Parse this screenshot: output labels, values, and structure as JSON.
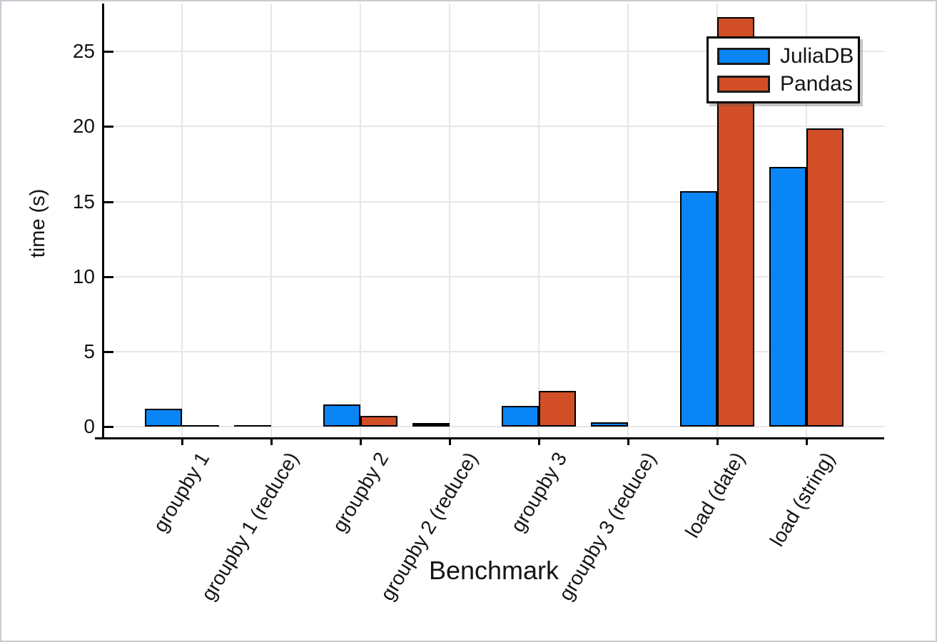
{
  "chart_data": {
    "type": "bar",
    "title": "",
    "xlabel": "Benchmark",
    "ylabel": "time (s)",
    "categories": [
      "groupby 1",
      "groupby 1 (reduce)",
      "groupby 2",
      "groupby 2 (reduce)",
      "groupby 3",
      "groupby 3 (reduce)",
      "load (date)",
      "load (string)"
    ],
    "series": [
      {
        "name": "JuliaDB",
        "color": "#0a85f6",
        "values": [
          1.2,
          0.1,
          1.5,
          0.25,
          1.4,
          0.3,
          15.7,
          17.3
        ]
      },
      {
        "name": "Pandas",
        "color": "#d14e27",
        "values": [
          0.1,
          0.01,
          0.7,
          0.01,
          2.4,
          0.01,
          27.3,
          19.9
        ]
      }
    ],
    "yticks": [
      0,
      5,
      10,
      15,
      20,
      25
    ],
    "ylim": [
      -0.8,
      28.2
    ],
    "x_label_rotation_deg": -59,
    "grid": true,
    "legend_position": "top-right",
    "bar_outline_color": "#000000",
    "grid_color": "#e7e7e7",
    "axis_color": "#000000",
    "background_color": "#ffffff"
  }
}
